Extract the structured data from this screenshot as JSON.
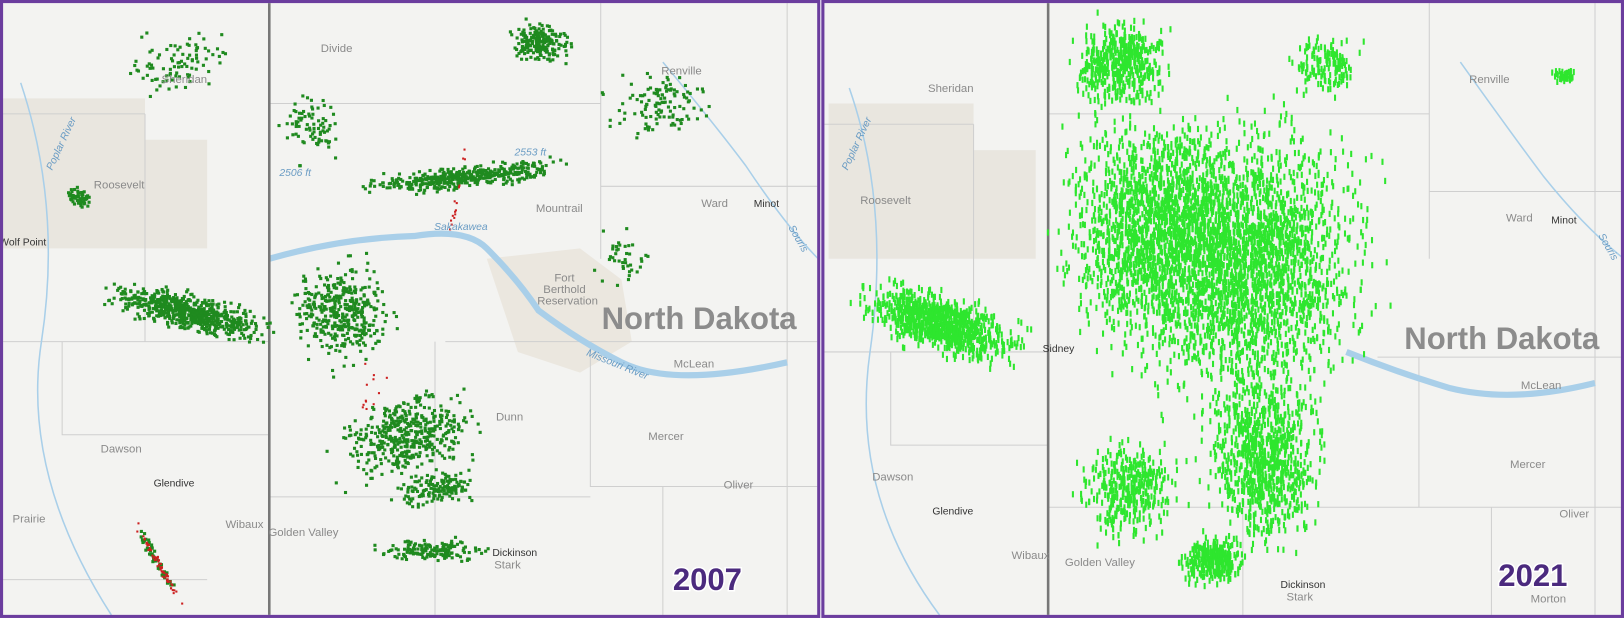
{
  "panels": [
    {
      "year": "2007",
      "labels": [
        "Sheridan",
        "Roosevelt",
        "Divide",
        "Renville",
        "2506 ft",
        "2553 ft",
        "Mountrail",
        "Ward",
        "Minot",
        "Fort",
        "Berthold",
        "Reservation",
        "North Dakota",
        "McLean",
        "Missouri River",
        "Dawson",
        "Glendive",
        "Wibaux",
        "Golden Valley",
        "Dickinson",
        "Stark",
        "Mercer",
        "Oliver",
        "Prairie",
        "Wolf Point",
        "Poplar River",
        "Sakakawea",
        "Souris",
        "Dunn"
      ]
    },
    {
      "year": "2021",
      "labels": [
        "Sheridan",
        "Renville",
        "Roosevelt",
        "Poplar River",
        "Ward",
        "Minot",
        "Souris",
        "North Dakota",
        "McLean",
        "Sidney",
        "Dawson",
        "Mercer",
        "Glendive",
        "Oliver",
        "Wibaux",
        "Golden Valley",
        "Dickinson",
        "Stark",
        "Morton"
      ]
    }
  ]
}
